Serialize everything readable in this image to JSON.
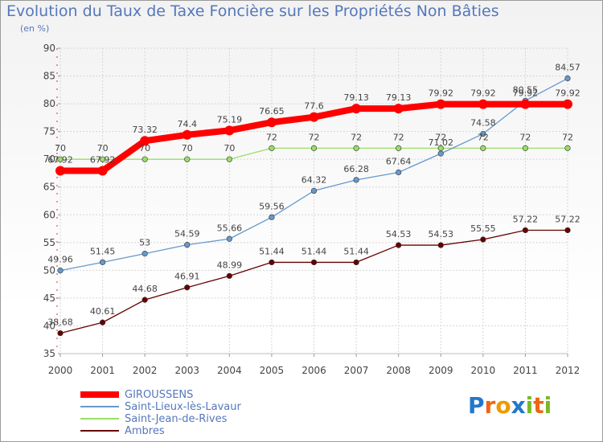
{
  "chart_data": {
    "type": "line",
    "title": "Evolution du Taux de Taxe Foncière sur les Propriétés Non Bâties",
    "subtitle": "(en %)",
    "x": [
      "2000",
      "2001",
      "2002",
      "2003",
      "2004",
      "2005",
      "2006",
      "2007",
      "2008",
      "2009",
      "2010",
      "2011",
      "2012"
    ],
    "ylim": [
      35,
      90
    ],
    "yticks": [
      "35",
      "40",
      "45",
      "50",
      "55",
      "60",
      "65",
      "70",
      "75",
      "80",
      "85",
      "90"
    ],
    "grid": true,
    "legend_position": "bottom-left",
    "series": [
      {
        "name": "GIROUSSENS",
        "color": "#ff0000",
        "values": [
          67.92,
          67.92,
          73.32,
          74.4,
          75.19,
          76.65,
          77.6,
          79.13,
          79.13,
          79.92,
          79.92,
          79.92,
          79.92
        ],
        "labels": [
          "67.92",
          "67.92",
          "73.32",
          "74.4",
          "75.19",
          "76.65",
          "77.6",
          "79.13",
          "79.13",
          "79.92",
          "79.92",
          "79.92",
          "79.92"
        ]
      },
      {
        "name": "Saint-Lieux-lès-Lavaur",
        "color": "#6699cc",
        "values": [
          49.96,
          51.45,
          53,
          54.59,
          55.66,
          59.56,
          64.32,
          66.28,
          67.64,
          71.02,
          74.58,
          80.55,
          84.57
        ],
        "labels": [
          "49.96",
          "51.45",
          "53",
          "54.59",
          "55.66",
          "59.56",
          "64.32",
          "66.28",
          "67.64",
          "71.02",
          "74.58",
          "80.55",
          "84.57"
        ]
      },
      {
        "name": "Saint-Jean-de-Rives",
        "color": "#99dd66",
        "values": [
          70,
          70,
          70,
          70,
          70,
          72,
          72,
          72,
          72,
          72,
          72,
          72,
          72
        ],
        "labels": [
          "70",
          "70",
          "70",
          "70",
          "70",
          "72",
          "72",
          "72",
          "72",
          "72",
          "72",
          "72",
          "72"
        ]
      },
      {
        "name": "Ambres",
        "color": "#660000",
        "values": [
          38.68,
          40.61,
          44.68,
          46.91,
          48.99,
          51.44,
          51.44,
          51.44,
          54.53,
          54.53,
          55.55,
          57.22,
          57.22
        ],
        "labels": [
          "38.68",
          "40.61",
          "44.68",
          "46.91",
          "48.99",
          "51.44",
          "51.44",
          "51.44",
          "54.53",
          "54.53",
          "55.55",
          "57.22",
          "57.22"
        ]
      }
    ]
  },
  "logo": {
    "letters": [
      "P",
      "r",
      "o",
      "x",
      "i",
      "t",
      "i"
    ],
    "colors": [
      "#2277cc",
      "#ee6611",
      "#ee9900",
      "#2277cc",
      "#77bb22",
      "#ee6611",
      "#77bb22"
    ]
  }
}
